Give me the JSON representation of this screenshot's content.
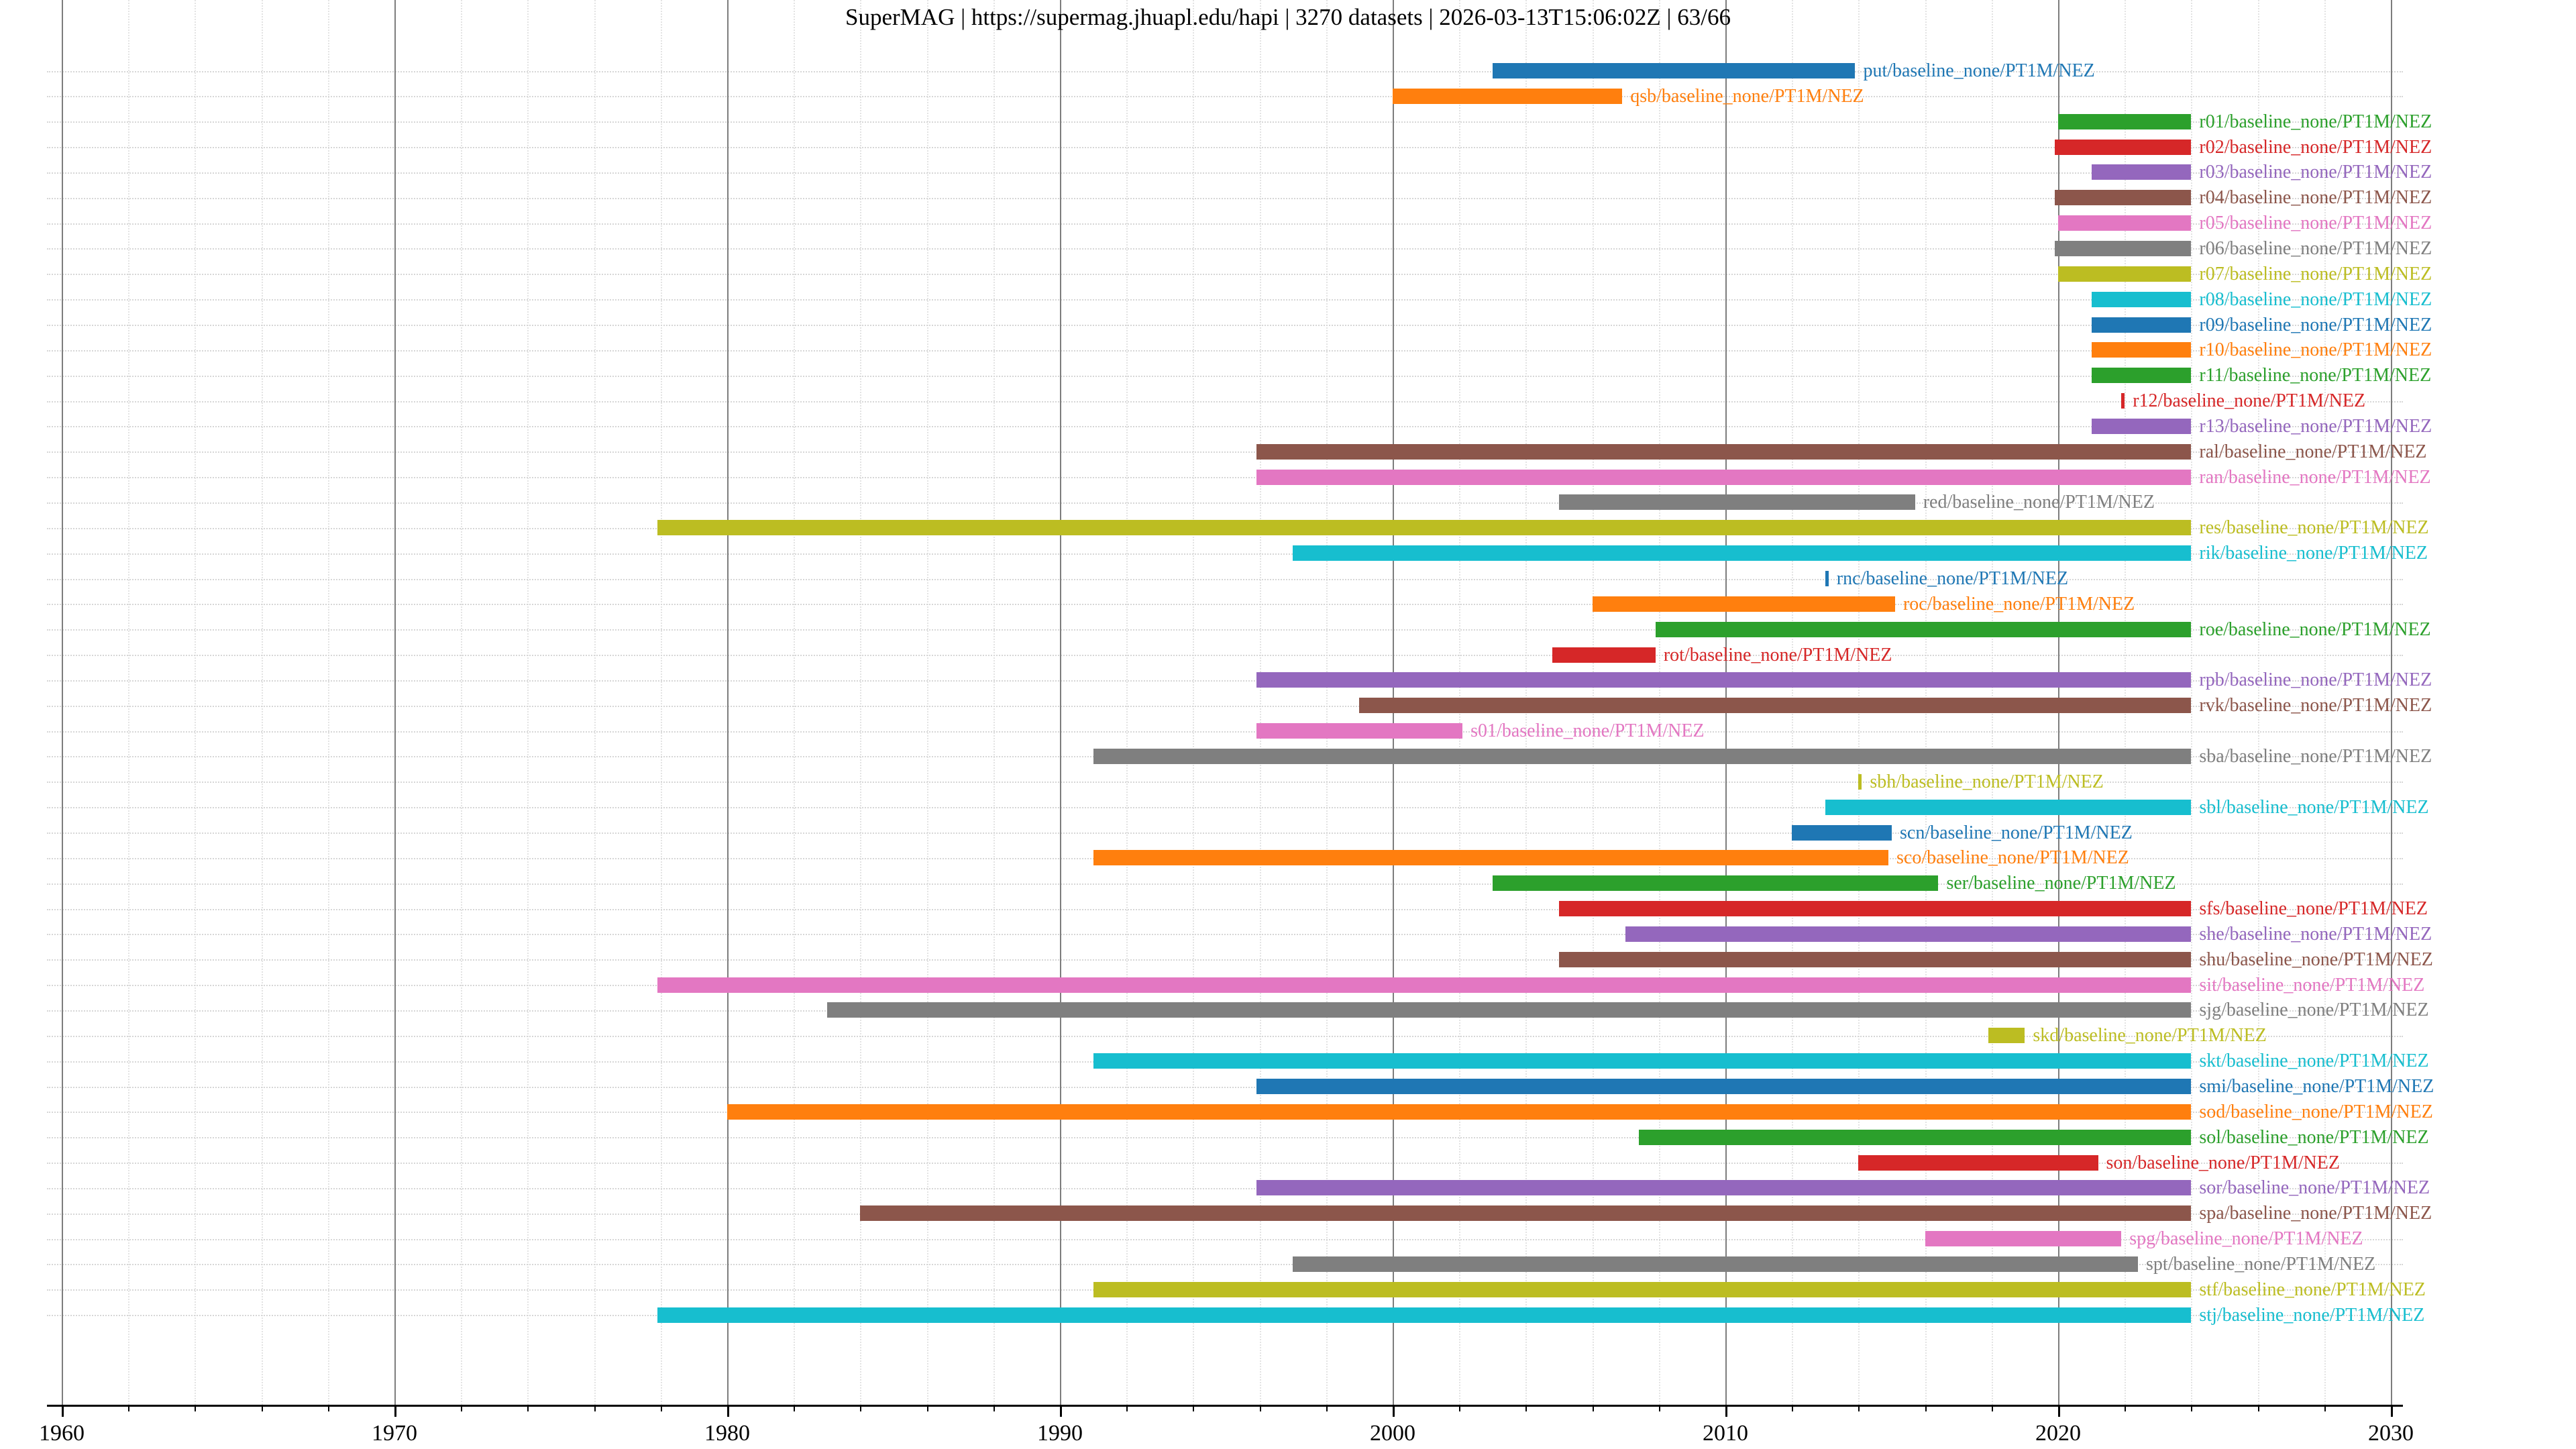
{
  "title": "SuperMAG | https://supermag.jhuapl.edu/hapi | 3270 datasets | 2026-03-13T15:06:02Z | 63/66",
  "chart_data": {
    "type": "timeline",
    "title": "SuperMAG | https://supermag.jhuapl.edu/hapi | 3270 datasets | 2026-03-13T15:06:02Z | 63/66",
    "xlabel": "",
    "ylabel": "",
    "x_ticks": [
      1960,
      1970,
      1980,
      1990,
      2000,
      2010,
      2020,
      2030
    ],
    "xlim": [
      1959.6,
      2030.4
    ],
    "grid": {
      "vertical_major": "solid gray decade lines",
      "vertical_minor": "dotted light lines every 2 years",
      "row_guides": "dotted light horizontal line per row"
    },
    "rows": [
      {
        "label": "put/baseline_none/PT1M/NEZ",
        "color": "#1f77b4",
        "start": 2003.0,
        "end": 2013.9
      },
      {
        "label": "qsb/baseline_none/PT1M/NEZ",
        "color": "#ff7f0e",
        "start": 2000.0,
        "end": 2006.9
      },
      {
        "label": "r01/baseline_none/PT1M/NEZ",
        "color": "#2ca02c",
        "start": 2020.0,
        "end": 2024.0
      },
      {
        "label": "r02/baseline_none/PT1M/NEZ",
        "color": "#d62728",
        "start": 2019.9,
        "end": 2024.0
      },
      {
        "label": "r03/baseline_none/PT1M/NEZ",
        "color": "#9467bd",
        "start": 2021.0,
        "end": 2024.0
      },
      {
        "label": "r04/baseline_none/PT1M/NEZ",
        "color": "#8c564b",
        "start": 2019.9,
        "end": 2024.0
      },
      {
        "label": "r05/baseline_none/PT1M/NEZ",
        "color": "#e377c2",
        "start": 2020.0,
        "end": 2024.0
      },
      {
        "label": "r06/baseline_none/PT1M/NEZ",
        "color": "#7f7f7f",
        "start": 2019.9,
        "end": 2024.0
      },
      {
        "label": "r07/baseline_none/PT1M/NEZ",
        "color": "#bcbd22",
        "start": 2020.0,
        "end": 2024.0
      },
      {
        "label": "r08/baseline_none/PT1M/NEZ",
        "color": "#17becf",
        "start": 2021.0,
        "end": 2024.0
      },
      {
        "label": "r09/baseline_none/PT1M/NEZ",
        "color": "#1f77b4",
        "start": 2021.0,
        "end": 2024.0
      },
      {
        "label": "r10/baseline_none/PT1M/NEZ",
        "color": "#ff7f0e",
        "start": 2021.0,
        "end": 2024.0
      },
      {
        "label": "r11/baseline_none/PT1M/NEZ",
        "color": "#2ca02c",
        "start": 2021.0,
        "end": 2024.0
      },
      {
        "label": "r12/baseline_none/PT1M/NEZ",
        "color": "#d62728",
        "start": 2021.9,
        "end": 2022.0
      },
      {
        "label": "r13/baseline_none/PT1M/NEZ",
        "color": "#9467bd",
        "start": 2021.0,
        "end": 2024.0
      },
      {
        "label": "ral/baseline_none/PT1M/NEZ",
        "color": "#8c564b",
        "start": 1995.9,
        "end": 2024.0
      },
      {
        "label": "ran/baseline_none/PT1M/NEZ",
        "color": "#e377c2",
        "start": 1995.9,
        "end": 2024.0
      },
      {
        "label": "red/baseline_none/PT1M/NEZ",
        "color": "#7f7f7f",
        "start": 2005.0,
        "end": 2015.7
      },
      {
        "label": "res/baseline_none/PT1M/NEZ",
        "color": "#bcbd22",
        "start": 1977.9,
        "end": 2024.0
      },
      {
        "label": "rik/baseline_none/PT1M/NEZ",
        "color": "#17becf",
        "start": 1997.0,
        "end": 2024.0
      },
      {
        "label": "rnc/baseline_none/PT1M/NEZ",
        "color": "#1f77b4",
        "start": 2013.0,
        "end": 2013.1
      },
      {
        "label": "roc/baseline_none/PT1M/NEZ",
        "color": "#ff7f0e",
        "start": 2006.0,
        "end": 2015.1
      },
      {
        "label": "roe/baseline_none/PT1M/NEZ",
        "color": "#2ca02c",
        "start": 2007.9,
        "end": 2024.0
      },
      {
        "label": "rot/baseline_none/PT1M/NEZ",
        "color": "#d62728",
        "start": 2004.8,
        "end": 2007.9
      },
      {
        "label": "rpb/baseline_none/PT1M/NEZ",
        "color": "#9467bd",
        "start": 1995.9,
        "end": 2024.0
      },
      {
        "label": "rvk/baseline_none/PT1M/NEZ",
        "color": "#8c564b",
        "start": 1999.0,
        "end": 2024.0
      },
      {
        "label": "s01/baseline_none/PT1M/NEZ",
        "color": "#e377c2",
        "start": 1995.9,
        "end": 2002.1
      },
      {
        "label": "sba/baseline_none/PT1M/NEZ",
        "color": "#7f7f7f",
        "start": 1991.0,
        "end": 2024.0
      },
      {
        "label": "sbh/baseline_none/PT1M/NEZ",
        "color": "#bcbd22",
        "start": 2014.0,
        "end": 2014.1
      },
      {
        "label": "sbl/baseline_none/PT1M/NEZ",
        "color": "#17becf",
        "start": 2013.0,
        "end": 2024.0
      },
      {
        "label": "scn/baseline_none/PT1M/NEZ",
        "color": "#1f77b4",
        "start": 2012.0,
        "end": 2015.0
      },
      {
        "label": "sco/baseline_none/PT1M/NEZ",
        "color": "#ff7f0e",
        "start": 1991.0,
        "end": 2014.9
      },
      {
        "label": "ser/baseline_none/PT1M/NEZ",
        "color": "#2ca02c",
        "start": 2003.0,
        "end": 2016.4
      },
      {
        "label": "sfs/baseline_none/PT1M/NEZ",
        "color": "#d62728",
        "start": 2005.0,
        "end": 2024.0
      },
      {
        "label": "she/baseline_none/PT1M/NEZ",
        "color": "#9467bd",
        "start": 2007.0,
        "end": 2024.0
      },
      {
        "label": "shu/baseline_none/PT1M/NEZ",
        "color": "#8c564b",
        "start": 2005.0,
        "end": 2024.0
      },
      {
        "label": "sit/baseline_none/PT1M/NEZ",
        "color": "#e377c2",
        "start": 1977.9,
        "end": 2024.0
      },
      {
        "label": "sjg/baseline_none/PT1M/NEZ",
        "color": "#7f7f7f",
        "start": 1983.0,
        "end": 2024.0
      },
      {
        "label": "skd/baseline_none/PT1M/NEZ",
        "color": "#bcbd22",
        "start": 2017.9,
        "end": 2019.0
      },
      {
        "label": "skt/baseline_none/PT1M/NEZ",
        "color": "#17becf",
        "start": 1991.0,
        "end": 2024.0
      },
      {
        "label": "smi/baseline_none/PT1M/NEZ",
        "color": "#1f77b4",
        "start": 1995.9,
        "end": 2024.0
      },
      {
        "label": "sod/baseline_none/PT1M/NEZ",
        "color": "#ff7f0e",
        "start": 1980.0,
        "end": 2024.0
      },
      {
        "label": "sol/baseline_none/PT1M/NEZ",
        "color": "#2ca02c",
        "start": 2007.4,
        "end": 2024.0
      },
      {
        "label": "son/baseline_none/PT1M/NEZ",
        "color": "#d62728",
        "start": 2014.0,
        "end": 2021.2
      },
      {
        "label": "sor/baseline_none/PT1M/NEZ",
        "color": "#9467bd",
        "start": 1995.9,
        "end": 2024.0
      },
      {
        "label": "spa/baseline_none/PT1M/NEZ",
        "color": "#8c564b",
        "start": 1984.0,
        "end": 2024.0
      },
      {
        "label": "spg/baseline_none/PT1M/NEZ",
        "color": "#e377c2",
        "start": 2016.0,
        "end": 2021.9
      },
      {
        "label": "spt/baseline_none/PT1M/NEZ",
        "color": "#7f7f7f",
        "start": 1997.0,
        "end": 2022.4
      },
      {
        "label": "stf/baseline_none/PT1M/NEZ",
        "color": "#bcbd22",
        "start": 1991.0,
        "end": 2024.0
      },
      {
        "label": "stj/baseline_none/PT1M/NEZ",
        "color": "#17becf",
        "start": 1977.9,
        "end": 2024.0
      }
    ]
  }
}
